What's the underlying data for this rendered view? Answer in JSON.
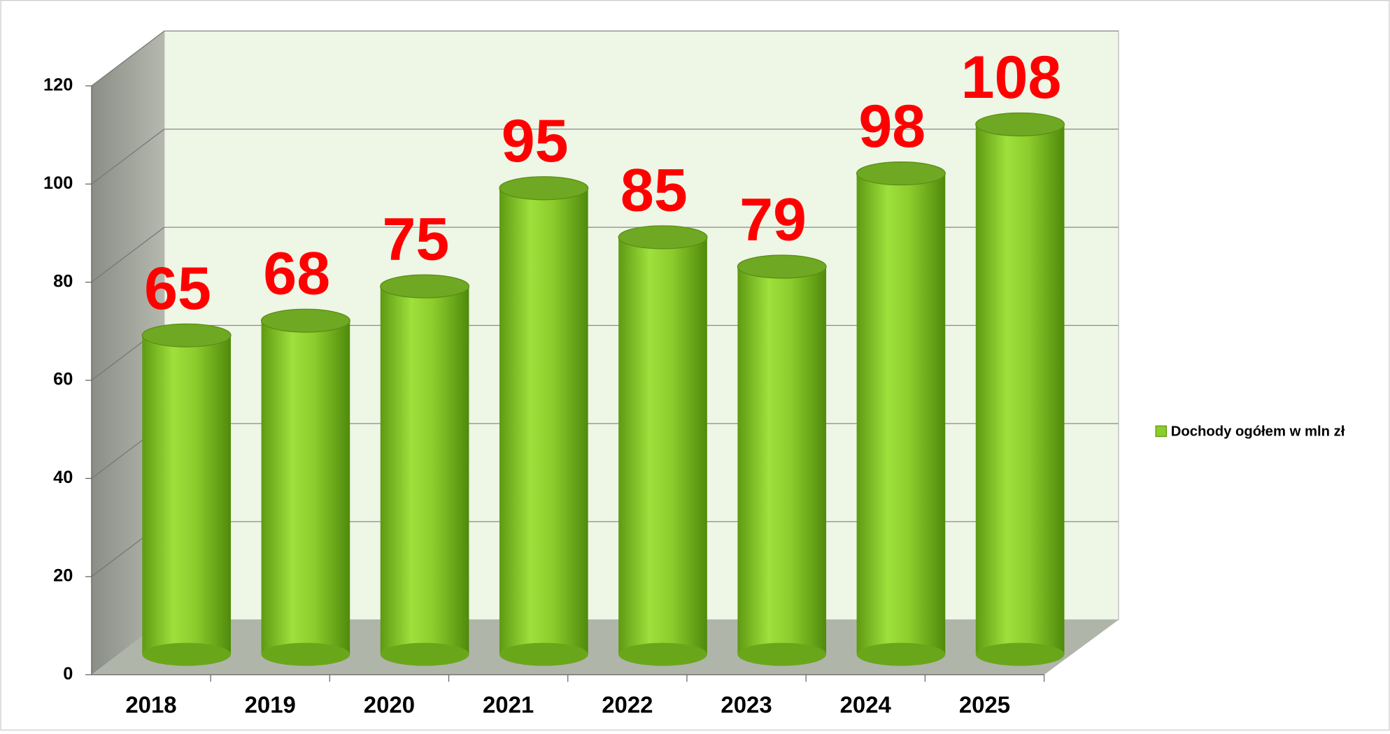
{
  "chart_data": {
    "type": "bar",
    "categories": [
      "2018",
      "2019",
      "2020",
      "2021",
      "2022",
      "2023",
      "2024",
      "2025"
    ],
    "series": [
      {
        "name": "Dochody ogółem w mln zł",
        "color": "#8ccc2c",
        "values": [
          65,
          68,
          75,
          95,
          85,
          79,
          98,
          108
        ]
      }
    ],
    "ylim": [
      0,
      120
    ],
    "yticks": [
      0,
      20,
      40,
      60,
      80,
      100,
      120
    ],
    "grid": true,
    "legend": "right",
    "label_color": "#ff0000"
  }
}
